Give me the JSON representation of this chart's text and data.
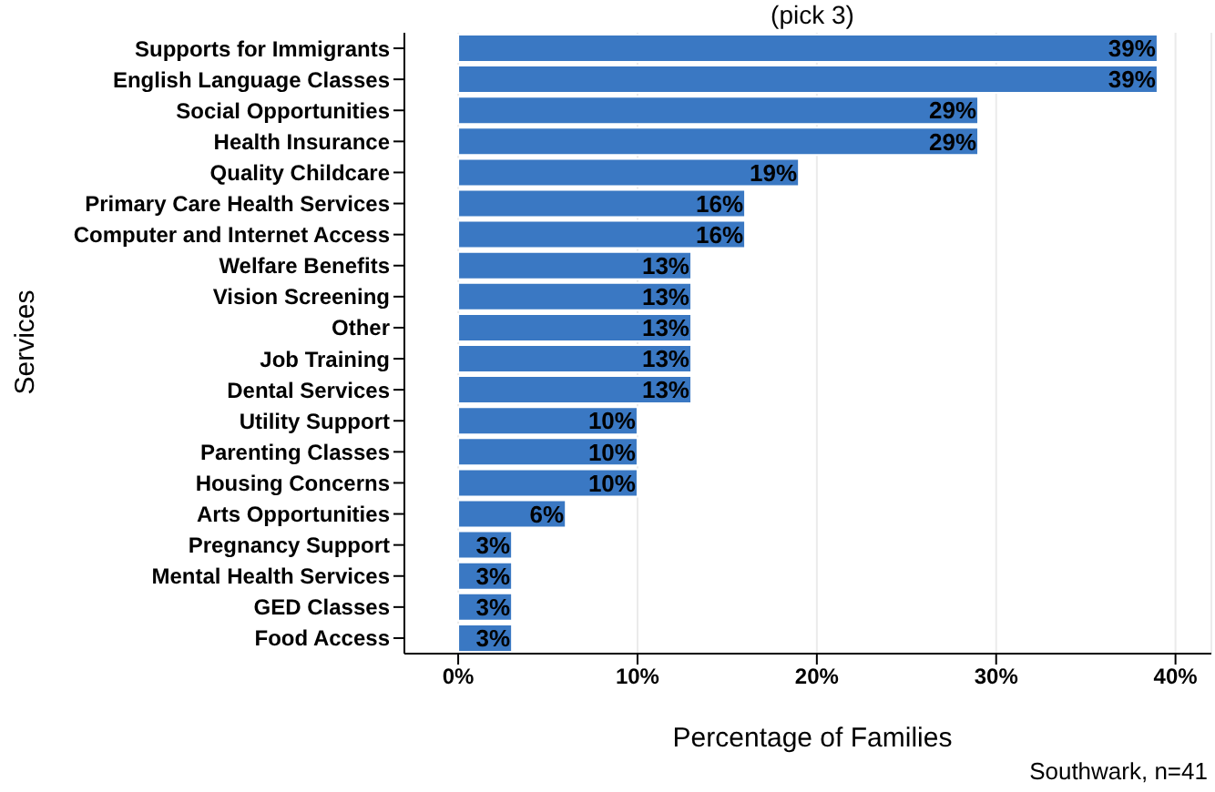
{
  "chart_data": {
    "type": "bar",
    "orientation": "horizontal",
    "title": "(pick 3)",
    "xlabel": "Percentage of Families",
    "ylabel": "Services",
    "categories": [
      "Supports for Immigrants",
      "English Language Classes",
      "Social Opportunities",
      "Health Insurance",
      "Quality Childcare",
      "Primary Care Health Services",
      "Computer and Internet Access",
      "Welfare Benefits",
      "Vision Screening",
      "Other",
      "Job Training",
      "Dental Services",
      "Utility Support",
      "Parenting Classes",
      "Housing Concerns",
      "Arts Opportunities",
      "Pregnancy Support",
      "Mental Health Services",
      "GED Classes",
      "Food Access"
    ],
    "values": [
      39,
      39,
      29,
      29,
      19,
      16,
      16,
      13,
      13,
      13,
      13,
      13,
      10,
      10,
      10,
      6,
      3,
      3,
      3,
      3
    ],
    "value_labels": [
      "39%",
      "39%",
      "29%",
      "29%",
      "19%",
      "16%",
      "16%",
      "13%",
      "13%",
      "13%",
      "13%",
      "13%",
      "10%",
      "10%",
      "10%",
      "6%",
      "3%",
      "3%",
      "3%",
      "3%"
    ],
    "color": "#3a78c3",
    "xlim": [
      -3,
      42
    ],
    "xticks": [
      {
        "value": 0,
        "label": "0%"
      },
      {
        "value": 10,
        "label": "10%"
      },
      {
        "value": 20,
        "label": "20%"
      },
      {
        "value": 30,
        "label": "30%"
      },
      {
        "value": 40,
        "label": "40%"
      }
    ],
    "grid": "x",
    "annotations": [
      "Southwark, n=41"
    ]
  }
}
